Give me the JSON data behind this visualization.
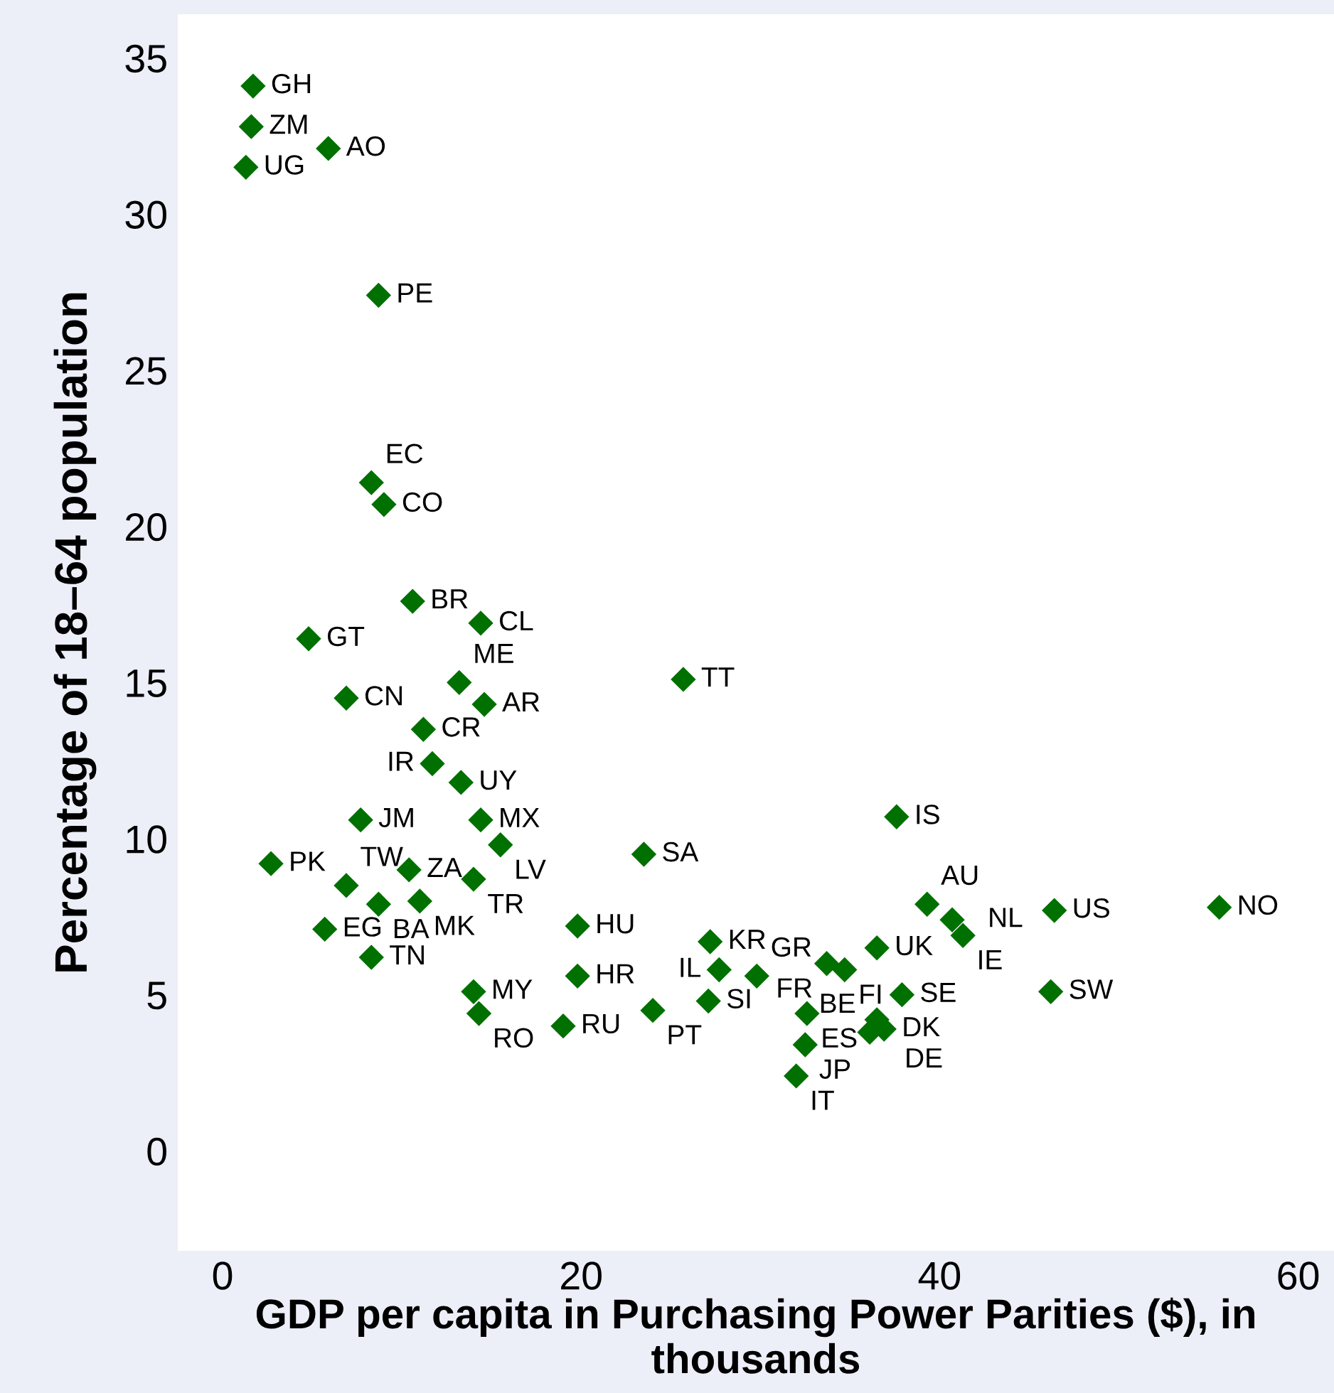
{
  "chart_data": {
    "type": "scatter",
    "xlabel": "GDP per capita in Purchasing Power Parities ($), in thousands",
    "ylabel": "Percentage of 18–64 population",
    "xlim": [
      -2.5,
      62
    ],
    "ylim": [
      -3.2,
      36.4
    ],
    "xticks": [
      0,
      20,
      40,
      60
    ],
    "yticks": [
      0,
      5,
      10,
      15,
      20,
      25,
      30,
      35
    ],
    "grid": false,
    "marker": "diamond",
    "series": [
      {
        "color": "#007000",
        "x": [
          1.7,
          1.6,
          1.3,
          5.9,
          8.7,
          8.3,
          9.0,
          10.6,
          14.4,
          4.8,
          13.2,
          14.6,
          25.7,
          6.9,
          11.2,
          11.7,
          13.3,
          14.4,
          15.5,
          7.7,
          2.7,
          23.5,
          6.9,
          10.4,
          14.0,
          8.7,
          11.0,
          5.7,
          8.3,
          19.8,
          14.0,
          14.3,
          19.8,
          19.0,
          24.0,
          27.1,
          27.2,
          27.7,
          29.8,
          33.7,
          34.7,
          36.5,
          37.6,
          39.3,
          40.7,
          41.3,
          46.4,
          55.6,
          46.2,
          37.9,
          32.6,
          36.5,
          36.1,
          36.9,
          32.5,
          32.0
        ],
        "values": [
          34.1,
          32.8,
          31.5,
          32.1,
          27.4,
          21.4,
          20.7,
          17.6,
          16.9,
          16.4,
          15.0,
          14.3,
          15.1,
          14.5,
          13.5,
          12.4,
          11.8,
          10.6,
          9.8,
          10.6,
          9.2,
          9.5,
          8.5,
          9.0,
          8.7,
          7.9,
          8.0,
          7.1,
          6.2,
          7.2,
          5.1,
          4.4,
          5.6,
          4.0,
          4.5,
          4.8,
          6.7,
          5.8,
          5.6,
          6.0,
          5.8,
          6.5,
          10.7,
          7.9,
          7.4,
          6.9,
          7.7,
          7.8,
          5.1,
          5.0,
          4.4,
          4.2,
          3.8,
          3.9,
          3.4,
          2.4
        ],
        "value_labels": [
          "GH",
          "ZM",
          "UG",
          "AO",
          "PE",
          "EC",
          "CO",
          "BR",
          "CL",
          "GT",
          "ME",
          "AR",
          "TT",
          "CN",
          "CR",
          "IR",
          "UY",
          "MX",
          "LV",
          "JM",
          "PK",
          "SA",
          "TW",
          "ZA",
          "TR",
          "BA",
          "MK",
          "EG",
          "TN",
          "HU",
          "MY",
          "RO",
          "HR",
          "RU",
          "PT",
          "SI",
          "KR",
          "IL",
          "GR",
          "FR",
          "FI",
          "UK",
          "IS",
          "AU",
          "NL",
          "IE",
          "US",
          "NO",
          "SW",
          "SE",
          "ES",
          "DE",
          "BE",
          "DK",
          "JP",
          "IT"
        ]
      }
    ]
  }
}
